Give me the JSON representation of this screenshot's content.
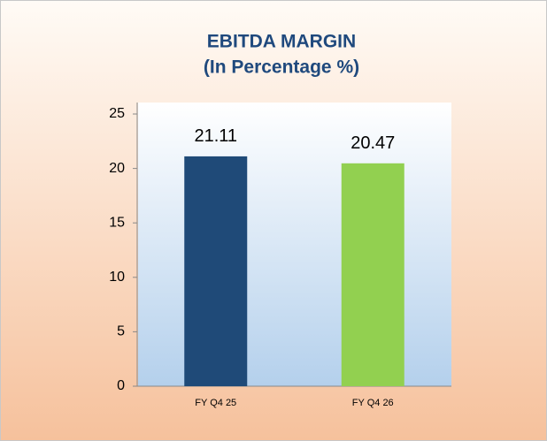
{
  "chart_data": {
    "type": "bar",
    "title": "EBITDA MARGIN",
    "subtitle": "(In Percentage %)",
    "categories": [
      "FY Q4 25",
      "FY Q4 26"
    ],
    "values": [
      21.11,
      20.47
    ],
    "colors": [
      "#1f4a78",
      "#92d050"
    ],
    "ylim": [
      0,
      25
    ],
    "yticks": [
      0,
      5,
      10,
      15,
      20,
      25
    ],
    "grid": false
  }
}
